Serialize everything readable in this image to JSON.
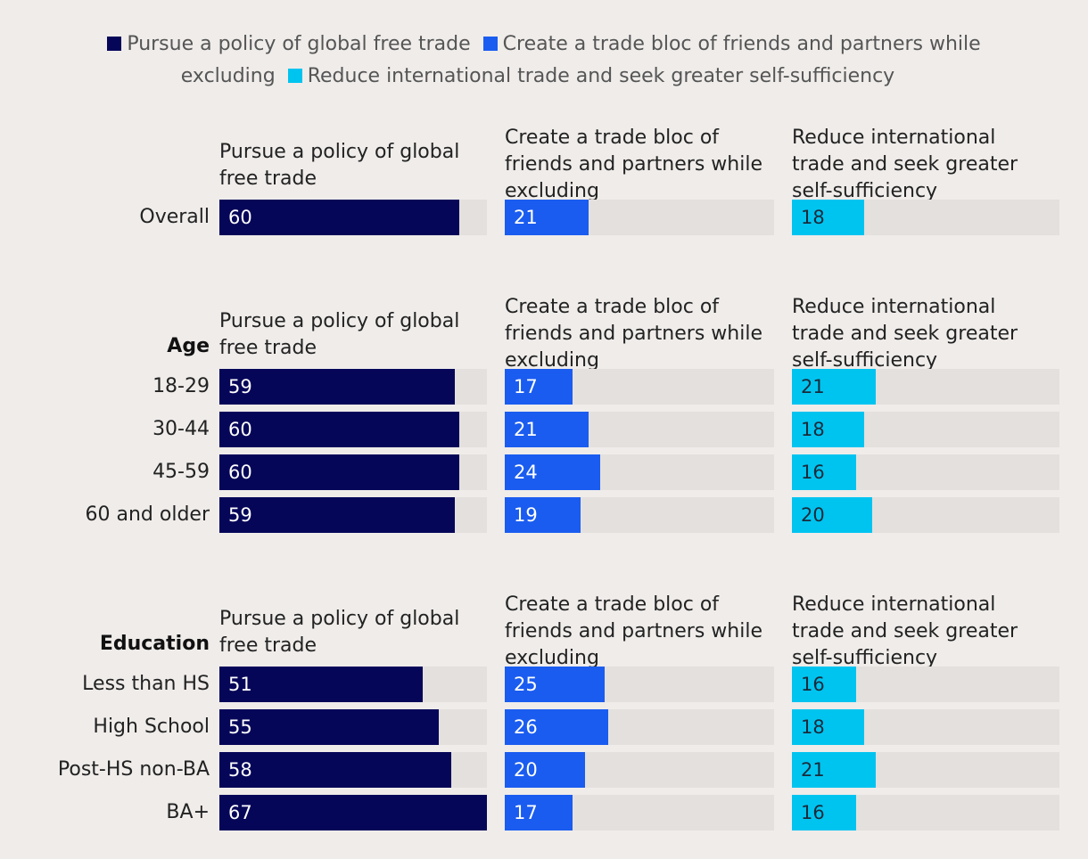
{
  "legend": [
    {
      "label": "Pursue a policy of global free trade",
      "color": "#060659"
    },
    {
      "label": "Create a trade bloc of friends and partners while excluding",
      "color": "#1a5cf0"
    },
    {
      "label": "Reduce international trade and seek greater self-sufficiency",
      "color": "#00c4f0"
    }
  ],
  "chart_data": {
    "type": "bar",
    "orientation": "horizontal",
    "facets": [
      "Pursue a policy of global free trade",
      "Create a trade bloc of friends and partners while excluding",
      "Reduce international trade and seek greater self-sufficiency"
    ],
    "xlim": [
      0,
      67
    ],
    "colors": [
      "#060659",
      "#1a5cf0",
      "#00c4f0"
    ],
    "groups": [
      {
        "label": "",
        "rows": [
          {
            "category": "Overall",
            "values": [
              60,
              21,
              18
            ]
          }
        ]
      },
      {
        "label": "Age",
        "rows": [
          {
            "category": "18-29",
            "values": [
              59,
              17,
              21
            ]
          },
          {
            "category": "30-44",
            "values": [
              60,
              21,
              18
            ]
          },
          {
            "category": "45-59",
            "values": [
              60,
              24,
              16
            ]
          },
          {
            "category": "60 and older",
            "values": [
              59,
              19,
              20
            ]
          }
        ]
      },
      {
        "label": "Education",
        "rows": [
          {
            "category": "Less than HS",
            "values": [
              51,
              25,
              16
            ]
          },
          {
            "category": "High School",
            "values": [
              55,
              26,
              18
            ]
          },
          {
            "category": "Post-HS non-BA",
            "values": [
              58,
              20,
              21
            ]
          },
          {
            "category": "BA+",
            "values": [
              67,
              17,
              16
            ]
          }
        ]
      }
    ]
  }
}
